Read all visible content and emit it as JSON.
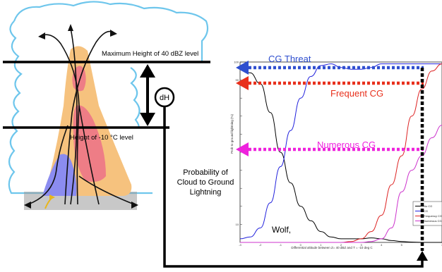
{
  "labels": {
    "max_height": "Maximum Height of 40 dBZ level",
    "height_minus10": "Height of -10 °C level",
    "dh": "dH",
    "prob_line1": "Probability of",
    "prob_line2": "Cloud to Ground",
    "prob_line3": "Lightning",
    "wolf": "Wolf,",
    "cg_threat": "CG Threat",
    "frequent_cg": "Frequent CG",
    "numerous_cg": "Numerous CG"
  },
  "colors": {
    "cloud_outline": "#6ec6ec",
    "core_orange": "#f6c27e",
    "core_red": "#ee7d86",
    "core_blue": "#8b8cf0",
    "cg_threat_blue": "#2f4fcf",
    "frequent_red": "#e8301c",
    "numerous_magenta": "#ee22dd",
    "curve_black": "#000000",
    "curve_blue": "#2222dd",
    "curve_red": "#dd2222",
    "curve_magenta": "#cc33cc"
  },
  "chart_data": {
    "type": "line",
    "title": "",
    "xlabel": "Differential altitude between Z= 40 dBZ and T = -10 deg C",
    "ylabel": "Prob to ground lightning (%)",
    "xlim": [
      -3,
      7
    ],
    "ylim": [
      0,
      100
    ],
    "x_ticks": [
      "-3",
      "-2",
      "-1",
      "0",
      "1",
      "2",
      "3",
      "4",
      "5",
      "6",
      "7"
    ],
    "y_ticks": [
      "10",
      "",
      "",
      "",
      "",
      "",
      "",
      "",
      "90",
      "100"
    ],
    "legend_position": "right",
    "series": [
      {
        "name": "No CG",
        "color": "#000000",
        "x": [
          -3,
          -2.5,
          -2,
          -1.5,
          -1,
          -0.5,
          0,
          0.5,
          1,
          1.5,
          2,
          2.5,
          3,
          3.5,
          4,
          4.5,
          5,
          5.5,
          6,
          6.5,
          7
        ],
        "y": [
          96,
          94,
          88,
          72,
          50,
          33,
          20,
          12,
          6,
          3,
          2,
          2,
          2,
          2.5,
          2,
          1,
          0.5,
          0.2,
          0,
          0,
          0
        ]
      },
      {
        "name": "CG",
        "color": "#2222dd",
        "x": [
          -3,
          -2.5,
          -2,
          -1.5,
          -1,
          -0.5,
          0,
          0.5,
          1,
          1.5,
          2,
          2.5,
          3,
          3.5,
          4,
          4.5,
          5,
          5.5,
          6,
          6.5,
          7
        ],
        "y": [
          2,
          3,
          8,
          22,
          42,
          62,
          80,
          92,
          98,
          99,
          97,
          96,
          96,
          97,
          99,
          99,
          99,
          99,
          99,
          99,
          99
        ]
      },
      {
        "name": "Frequency CG",
        "color": "#dd2222",
        "x": [
          -3,
          -2,
          -1,
          0,
          1,
          2,
          2.5,
          3,
          3.5,
          4,
          4.5,
          5,
          5.5,
          6,
          6.5,
          7
        ],
        "y": [
          0,
          0,
          0,
          0,
          0,
          0,
          0.5,
          2,
          6,
          15,
          32,
          48,
          70,
          85,
          95,
          99
        ]
      },
      {
        "name": "Numerous CG",
        "color": "#cc33cc",
        "x": [
          -3,
          -2,
          -1,
          0,
          1,
          2,
          3,
          3.5,
          4,
          4.5,
          5,
          5.5,
          6,
          6.5,
          7
        ],
        "y": [
          0,
          0,
          0,
          0,
          0,
          0,
          0,
          0.5,
          2,
          8,
          28,
          40,
          48,
          58,
          65
        ]
      }
    ]
  }
}
